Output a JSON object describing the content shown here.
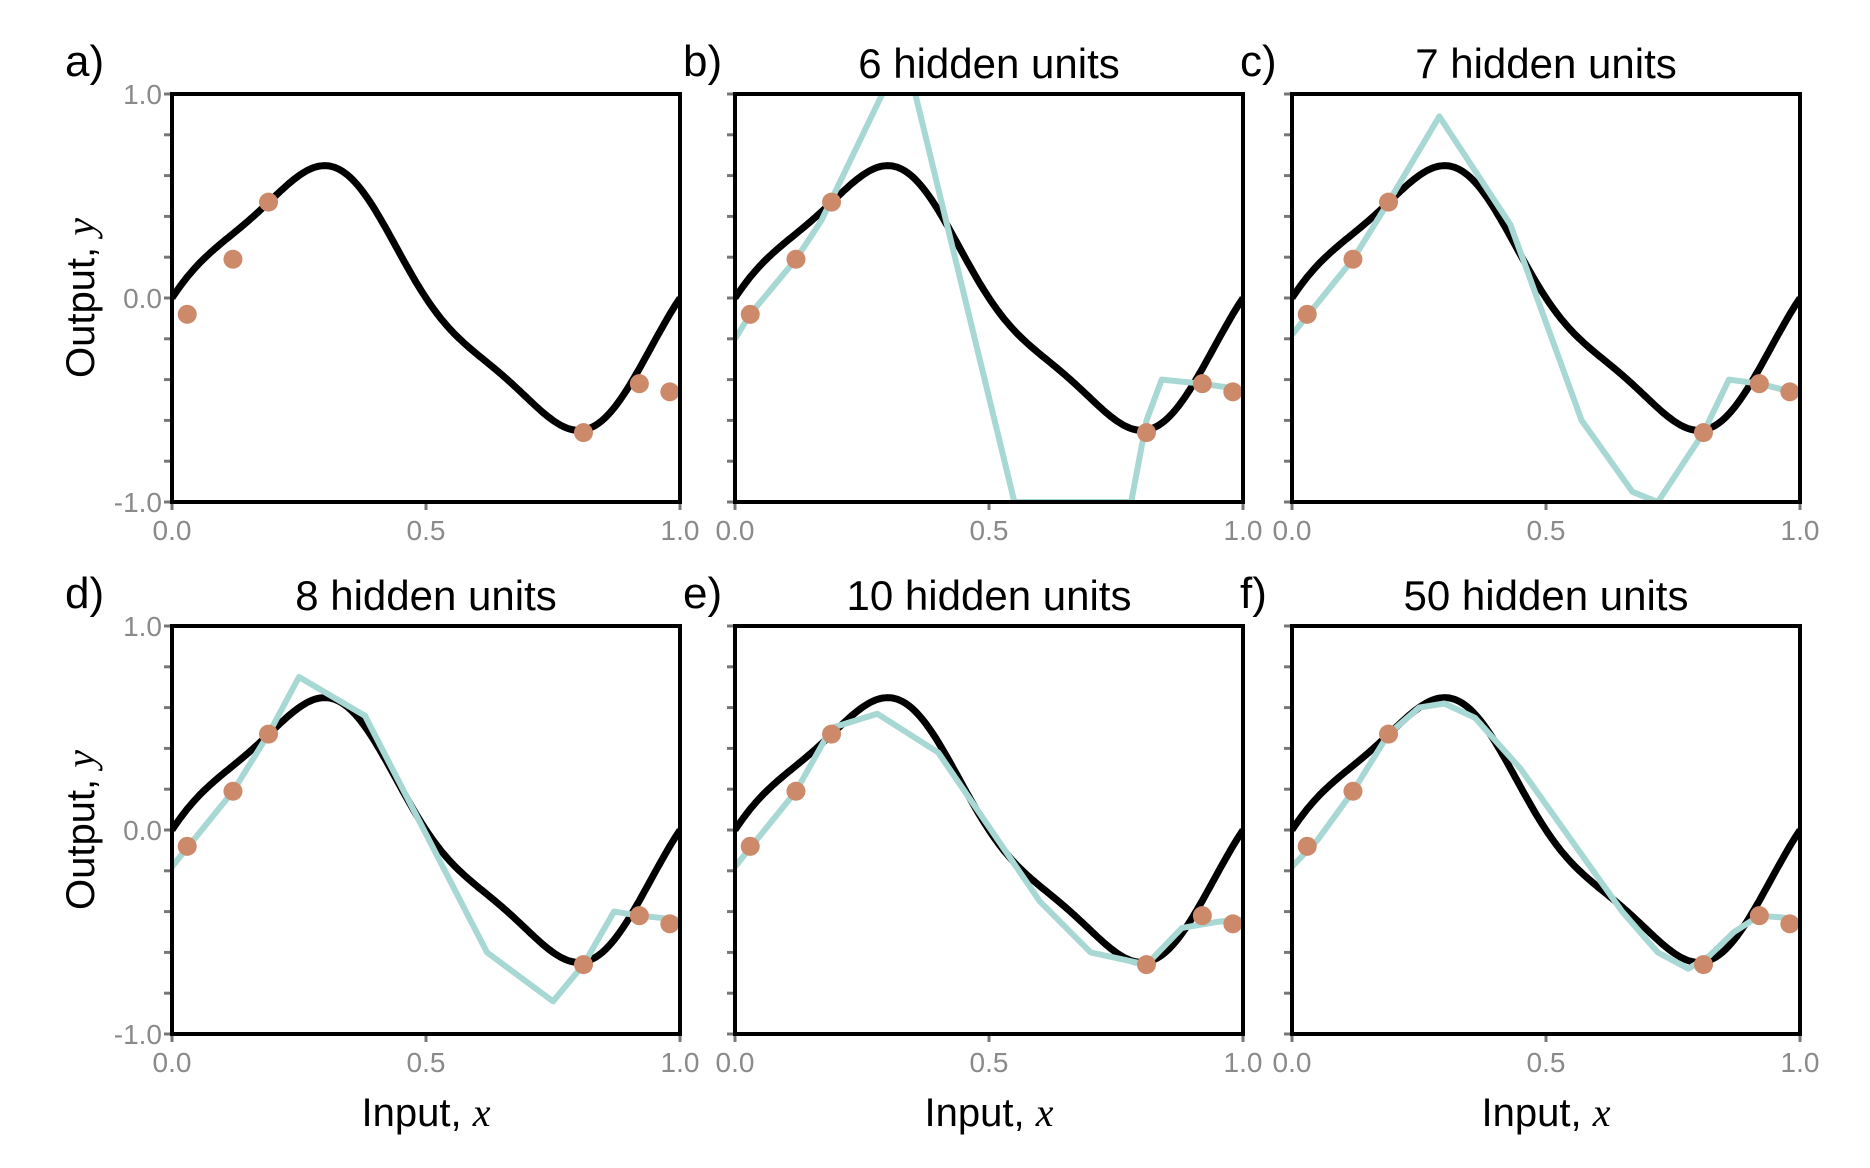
{
  "colors": {
    "true_function": "#000000",
    "fit": "#a8d8d4",
    "points": "#cc8a6b",
    "tick_label": "#8a8a8a"
  },
  "chart_data": [
    {
      "type": "line",
      "panel_label": "a)",
      "title": "",
      "ylabel": "Output, ",
      "ylabel_var": "y",
      "xlabel": "",
      "xlabel_var": "",
      "xlim": [
        0,
        1
      ],
      "ylim": [
        -1,
        1
      ],
      "xticks": [
        "0.0",
        "0.5",
        "1.0"
      ],
      "yticks": [
        "-1.0",
        "0.0",
        "1.0"
      ],
      "true_function": "0.6*sin(2*pi*x) - 0.3*cos(2*pi*x)^... approximated",
      "points": [
        [
          0.03,
          -0.08
        ],
        [
          0.12,
          0.19
        ],
        [
          0.19,
          0.47
        ],
        [
          0.81,
          -0.66
        ],
        [
          0.92,
          -0.42
        ],
        [
          0.98,
          -0.46
        ]
      ],
      "fit": []
    },
    {
      "type": "line",
      "panel_label": "b)",
      "title": "6 hidden units",
      "ylabel": "",
      "ylabel_var": "",
      "xlabel": "",
      "xlabel_var": "",
      "xlim": [
        0,
        1
      ],
      "ylim": [
        -1,
        1
      ],
      "xticks": [
        "0.0",
        "0.5",
        "1.0"
      ],
      "yticks": [],
      "points": [
        [
          0.03,
          -0.08
        ],
        [
          0.12,
          0.19
        ],
        [
          0.19,
          0.47
        ],
        [
          0.81,
          -0.66
        ],
        [
          0.92,
          -0.42
        ],
        [
          0.98,
          -0.46
        ]
      ],
      "fit": [
        [
          0.0,
          -0.2
        ],
        [
          0.03,
          -0.08
        ],
        [
          0.12,
          0.19
        ],
        [
          0.17,
          0.38
        ],
        [
          0.29,
          1.0
        ],
        [
          0.35,
          1.05
        ],
        [
          0.55,
          -1.0
        ],
        [
          0.78,
          -1.0
        ],
        [
          0.81,
          -0.6
        ],
        [
          0.84,
          -0.4
        ],
        [
          0.92,
          -0.42
        ],
        [
          1.0,
          -0.45
        ]
      ]
    },
    {
      "type": "line",
      "panel_label": "c)",
      "title": "7 hidden units",
      "ylabel": "",
      "ylabel_var": "",
      "xlabel": "",
      "xlabel_var": "",
      "xlim": [
        0,
        1
      ],
      "ylim": [
        -1,
        1
      ],
      "xticks": [
        "0.0",
        "0.5",
        "1.0"
      ],
      "yticks": [],
      "points": [
        [
          0.03,
          -0.08
        ],
        [
          0.12,
          0.19
        ],
        [
          0.19,
          0.47
        ],
        [
          0.81,
          -0.66
        ],
        [
          0.92,
          -0.42
        ],
        [
          0.98,
          -0.46
        ]
      ],
      "fit": [
        [
          0.0,
          -0.18
        ],
        [
          0.12,
          0.19
        ],
        [
          0.19,
          0.47
        ],
        [
          0.29,
          0.89
        ],
        [
          0.43,
          0.36
        ],
        [
          0.57,
          -0.6
        ],
        [
          0.67,
          -0.95
        ],
        [
          0.72,
          -1.0
        ],
        [
          0.81,
          -0.66
        ],
        [
          0.86,
          -0.4
        ],
        [
          0.92,
          -0.42
        ],
        [
          1.0,
          -0.47
        ]
      ]
    },
    {
      "type": "line",
      "panel_label": "d)",
      "title": "8 hidden units",
      "ylabel": "Output, ",
      "ylabel_var": "y",
      "xlabel": "Input, ",
      "xlabel_var": "x",
      "xlim": [
        0,
        1
      ],
      "ylim": [
        -1,
        1
      ],
      "xticks": [
        "0.0",
        "0.5",
        "1.0"
      ],
      "yticks": [
        "-1.0",
        "0.0",
        "1.0"
      ],
      "points": [
        [
          0.03,
          -0.08
        ],
        [
          0.12,
          0.19
        ],
        [
          0.19,
          0.47
        ],
        [
          0.81,
          -0.66
        ],
        [
          0.92,
          -0.42
        ],
        [
          0.98,
          -0.46
        ]
      ],
      "fit": [
        [
          0.0,
          -0.18
        ],
        [
          0.12,
          0.19
        ],
        [
          0.19,
          0.47
        ],
        [
          0.25,
          0.75
        ],
        [
          0.38,
          0.56
        ],
        [
          0.62,
          -0.6
        ],
        [
          0.75,
          -0.84
        ],
        [
          0.81,
          -0.66
        ],
        [
          0.87,
          -0.4
        ],
        [
          0.92,
          -0.42
        ],
        [
          1.0,
          -0.44
        ]
      ]
    },
    {
      "type": "line",
      "panel_label": "e)",
      "title": "10 hidden units",
      "ylabel": "",
      "ylabel_var": "",
      "xlabel": "Input, ",
      "xlabel_var": "x",
      "xlim": [
        0,
        1
      ],
      "ylim": [
        -1,
        1
      ],
      "xticks": [
        "0.0",
        "0.5",
        "1.0"
      ],
      "yticks": [],
      "points": [
        [
          0.03,
          -0.08
        ],
        [
          0.12,
          0.19
        ],
        [
          0.19,
          0.47
        ],
        [
          0.81,
          -0.66
        ],
        [
          0.92,
          -0.42
        ],
        [
          0.98,
          -0.46
        ]
      ],
      "fit": [
        [
          0.0,
          -0.18
        ],
        [
          0.12,
          0.19
        ],
        [
          0.19,
          0.5
        ],
        [
          0.28,
          0.57
        ],
        [
          0.4,
          0.38
        ],
        [
          0.6,
          -0.35
        ],
        [
          0.7,
          -0.6
        ],
        [
          0.81,
          -0.66
        ],
        [
          0.88,
          -0.48
        ],
        [
          0.95,
          -0.45
        ],
        [
          1.0,
          -0.44
        ]
      ]
    },
    {
      "type": "line",
      "panel_label": "f)",
      "title": "50 hidden units",
      "ylabel": "",
      "ylabel_var": "",
      "xlabel": "Input, ",
      "xlabel_var": "x",
      "xlim": [
        0,
        1
      ],
      "ylim": [
        -1,
        1
      ],
      "xticks": [
        "0.0",
        "0.5",
        "1.0"
      ],
      "yticks": [],
      "points": [
        [
          0.03,
          -0.08
        ],
        [
          0.12,
          0.19
        ],
        [
          0.19,
          0.47
        ],
        [
          0.81,
          -0.66
        ],
        [
          0.92,
          -0.42
        ],
        [
          0.98,
          -0.46
        ]
      ],
      "fit": [
        [
          0.0,
          -0.18
        ],
        [
          0.05,
          -0.05
        ],
        [
          0.12,
          0.19
        ],
        [
          0.19,
          0.47
        ],
        [
          0.25,
          0.6
        ],
        [
          0.3,
          0.62
        ],
        [
          0.36,
          0.55
        ],
        [
          0.45,
          0.3
        ],
        [
          0.55,
          -0.05
        ],
        [
          0.65,
          -0.4
        ],
        [
          0.72,
          -0.6
        ],
        [
          0.78,
          -0.68
        ],
        [
          0.82,
          -0.62
        ],
        [
          0.87,
          -0.5
        ],
        [
          0.92,
          -0.42
        ],
        [
          0.97,
          -0.43
        ],
        [
          1.0,
          -0.45
        ]
      ]
    }
  ]
}
